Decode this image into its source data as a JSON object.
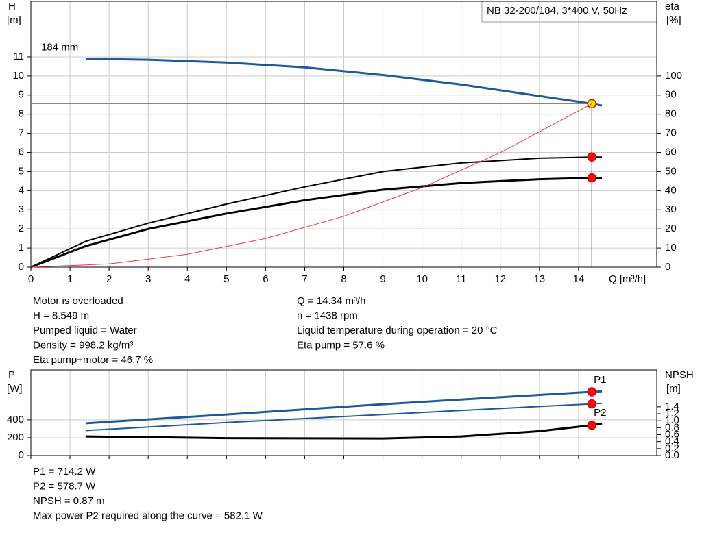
{
  "chart_data": [
    {
      "type": "line",
      "title": "NB 32-200/184, 3*400 V, 50Hz",
      "x_label": "Q [m³/h]",
      "y_label": [
        "H",
        "[m]"
      ],
      "y2_label": [
        "eta",
        "[%]"
      ],
      "xlim": [
        0,
        16
      ],
      "xticks": [
        0,
        1,
        2,
        3,
        4,
        5,
        6,
        7,
        8,
        9,
        10,
        11,
        12,
        13,
        14
      ],
      "x_tick_labels": true,
      "ylim": [
        0,
        13.9
      ],
      "yticks": [
        0,
        1,
        2,
        3,
        4,
        5,
        6,
        7,
        8,
        9,
        10,
        11
      ],
      "y2lim": [
        0,
        139
      ],
      "y2ticks": [
        0,
        10,
        20,
        30,
        40,
        50,
        60,
        70,
        80,
        90,
        100
      ],
      "grid": true,
      "operating_q": 14.34,
      "operating_h": 8.549,
      "series": [
        {
          "name": "184 mm",
          "color": "#1f5a96",
          "width": 3,
          "marker_color": "#ffee00",
          "x": [
            1.4,
            3,
            5,
            7,
            9,
            11,
            13,
            14.34,
            14.6
          ],
          "values": [
            10.9,
            10.85,
            10.7,
            10.45,
            10.05,
            9.55,
            8.95,
            8.549,
            8.45
          ]
        },
        {
          "color": "#000000",
          "width": 2,
          "axis": "y2",
          "marker_color": "#ee1111",
          "x": [
            0,
            1.4,
            3,
            5,
            7,
            9,
            11,
            13,
            14.34,
            14.6
          ],
          "values": [
            0,
            13.5,
            23,
            33,
            42,
            50,
            54.5,
            57,
            57.6,
            57.6
          ]
        },
        {
          "color": "#000000",
          "width": 3,
          "axis": "y2",
          "marker_color": "#ee1111",
          "x": [
            0,
            1.4,
            3,
            5,
            7,
            9,
            11,
            13,
            14.34,
            14.6
          ],
          "values": [
            0,
            11,
            20,
            28,
            35,
            40.5,
            44,
            46,
            46.7,
            46.7
          ]
        },
        {
          "color": "#ee3333",
          "width": 1,
          "x": [
            0,
            2,
            4,
            6,
            8,
            10,
            12,
            14.34
          ],
          "values": [
            0,
            0.17,
            0.67,
            1.5,
            2.66,
            4.16,
            5.99,
            8.549
          ]
        }
      ]
    },
    {
      "type": "line",
      "y_label": [
        "P",
        "[W]"
      ],
      "y2_label": [
        "NPSH",
        "[m]"
      ],
      "xlim": [
        0,
        16
      ],
      "xticks": [
        0,
        1,
        2,
        3,
        4,
        5,
        6,
        7,
        8,
        9,
        10,
        11,
        12,
        13,
        14
      ],
      "x_tick_labels": false,
      "ylim": [
        0,
        960
      ],
      "yticks": [
        0,
        200,
        400
      ],
      "y2lim": [
        0,
        2.46
      ],
      "y2ticks": [
        {
          "value": 0,
          "label": "0.0"
        },
        {
          "value": 0.2,
          "label": "0.2"
        },
        {
          "value": 0.4,
          "label": "0.4"
        },
        {
          "value": 0.6,
          "label": "0.6"
        },
        {
          "value": 0.8,
          "label": "0.8"
        },
        {
          "value": 1,
          "label": "1.0"
        },
        {
          "value": 1.2,
          "label": "1.2"
        },
        {
          "value": 1.4,
          "label": "1.4"
        }
      ],
      "grid": true,
      "operating_q": 14.34,
      "series": [
        {
          "name": "P1",
          "color": "#1f5a96",
          "width": 3,
          "marker_color": "#ee1111",
          "x": [
            1.4,
            5,
            9,
            13,
            14.34,
            14.6
          ],
          "values": [
            362,
            460,
            575,
            680,
            714.2,
            720
          ]
        },
        {
          "name": "P2",
          "color": "#1f5a96",
          "width": 2,
          "marker_color": "#ee1111",
          "x": [
            1.4,
            5,
            9,
            13,
            14.34,
            14.6
          ],
          "values": [
            280,
            370,
            460,
            550,
            578.7,
            585
          ]
        },
        {
          "color": "#000000",
          "width": 3,
          "axis": "y2",
          "marker_color": "#ee1111",
          "x": [
            1.4,
            5,
            9,
            11,
            13,
            14.34,
            14.6
          ],
          "values": [
            0.55,
            0.5,
            0.49,
            0.55,
            0.7,
            0.87,
            0.92
          ]
        }
      ]
    }
  ],
  "info": {
    "left": [
      "Motor is overloaded",
      "H = 8.549 m",
      "Pumped liquid = Water",
      "Density = 998.2 kg/m³",
      "Eta pump+motor = 46.7 %"
    ],
    "right": [
      "Q = 14.34 m³/h",
      "n = 1438 rpm",
      "Liquid temperature during operation = 20 °C",
      "Eta pump = 57.6 %"
    ],
    "bottom": [
      "P1 = 714.2 W",
      "P2 = 578.7 W",
      "NPSH = 0.87 m",
      "Max power P2 required along the curve = 582.1 W"
    ]
  }
}
